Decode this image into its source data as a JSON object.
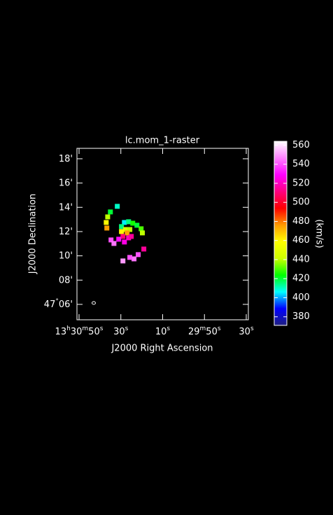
{
  "chart_data": {
    "type": "raster",
    "title": "lc.mom_1-raster",
    "xlabel": "J2000 Right Ascension",
    "ylabel": "J2000 Declination",
    "colorbar_label": "(km/s)",
    "xlim": [
      1851,
      1769
    ],
    "xticks": [
      {
        "value": 1850,
        "label": "13h30m50s"
      },
      {
        "value": 1830,
        "label": "30s"
      },
      {
        "value": 1810,
        "label": "10s"
      },
      {
        "value": 1790,
        "label": "29m50s"
      },
      {
        "value": 1770,
        "label": "30s"
      }
    ],
    "ylim": [
      4.73,
      18.86
    ],
    "yticks": [
      {
        "value": 6,
        "label": "47°06'"
      },
      {
        "value": 8,
        "label": "08'"
      },
      {
        "value": 10,
        "label": "10'"
      },
      {
        "value": 12,
        "label": "12'"
      },
      {
        "value": 14,
        "label": "14'"
      },
      {
        "value": 16,
        "label": "16'"
      },
      {
        "value": 18,
        "label": "18'"
      }
    ],
    "clim": [
      371,
      564
    ],
    "cticks": [
      380,
      400,
      420,
      440,
      460,
      480,
      500,
      520,
      540,
      560
    ],
    "colormap": [
      "#202080",
      "#0000ff",
      "#00ffff",
      "#00ff00",
      "#ccff00",
      "#ffff00",
      "#ff9900",
      "#ff0000",
      "#ff0080",
      "#ff00ff",
      "#ff80ff",
      "#ffffff"
    ],
    "x": [
      1831.7,
      1835,
      1836.3,
      1837,
      1836.7,
      1828.3,
      1826.3,
      1824.3,
      1822.3,
      1820.3,
      1819.7,
      1829.7,
      1827.7,
      1825.7,
      1829.7,
      1827,
      1829,
      1826.3,
      1831,
      1828.3,
      1834.7,
      1833.3,
      1825,
      1819,
      1821.7,
      1823.7,
      1829,
      1825.7
    ],
    "y": [
      14.08,
      13.62,
      13.21,
      12.75,
      12.29,
      12.75,
      12.81,
      12.69,
      12.52,
      12.23,
      11.89,
      12.41,
      12.17,
      12.17,
      12.0,
      11.89,
      11.6,
      11.48,
      11.37,
      11.14,
      11.31,
      11.02,
      11.6,
      10.56,
      10.1,
      9.75,
      9.58,
      9.87
    ],
    "values": [
      410,
      420,
      440,
      460,
      475,
      405,
      415,
      425,
      420,
      430,
      440,
      415,
      445,
      440,
      460,
      475,
      510,
      520,
      530,
      525,
      540,
      545,
      515,
      515,
      540,
      545,
      550,
      540
    ]
  }
}
